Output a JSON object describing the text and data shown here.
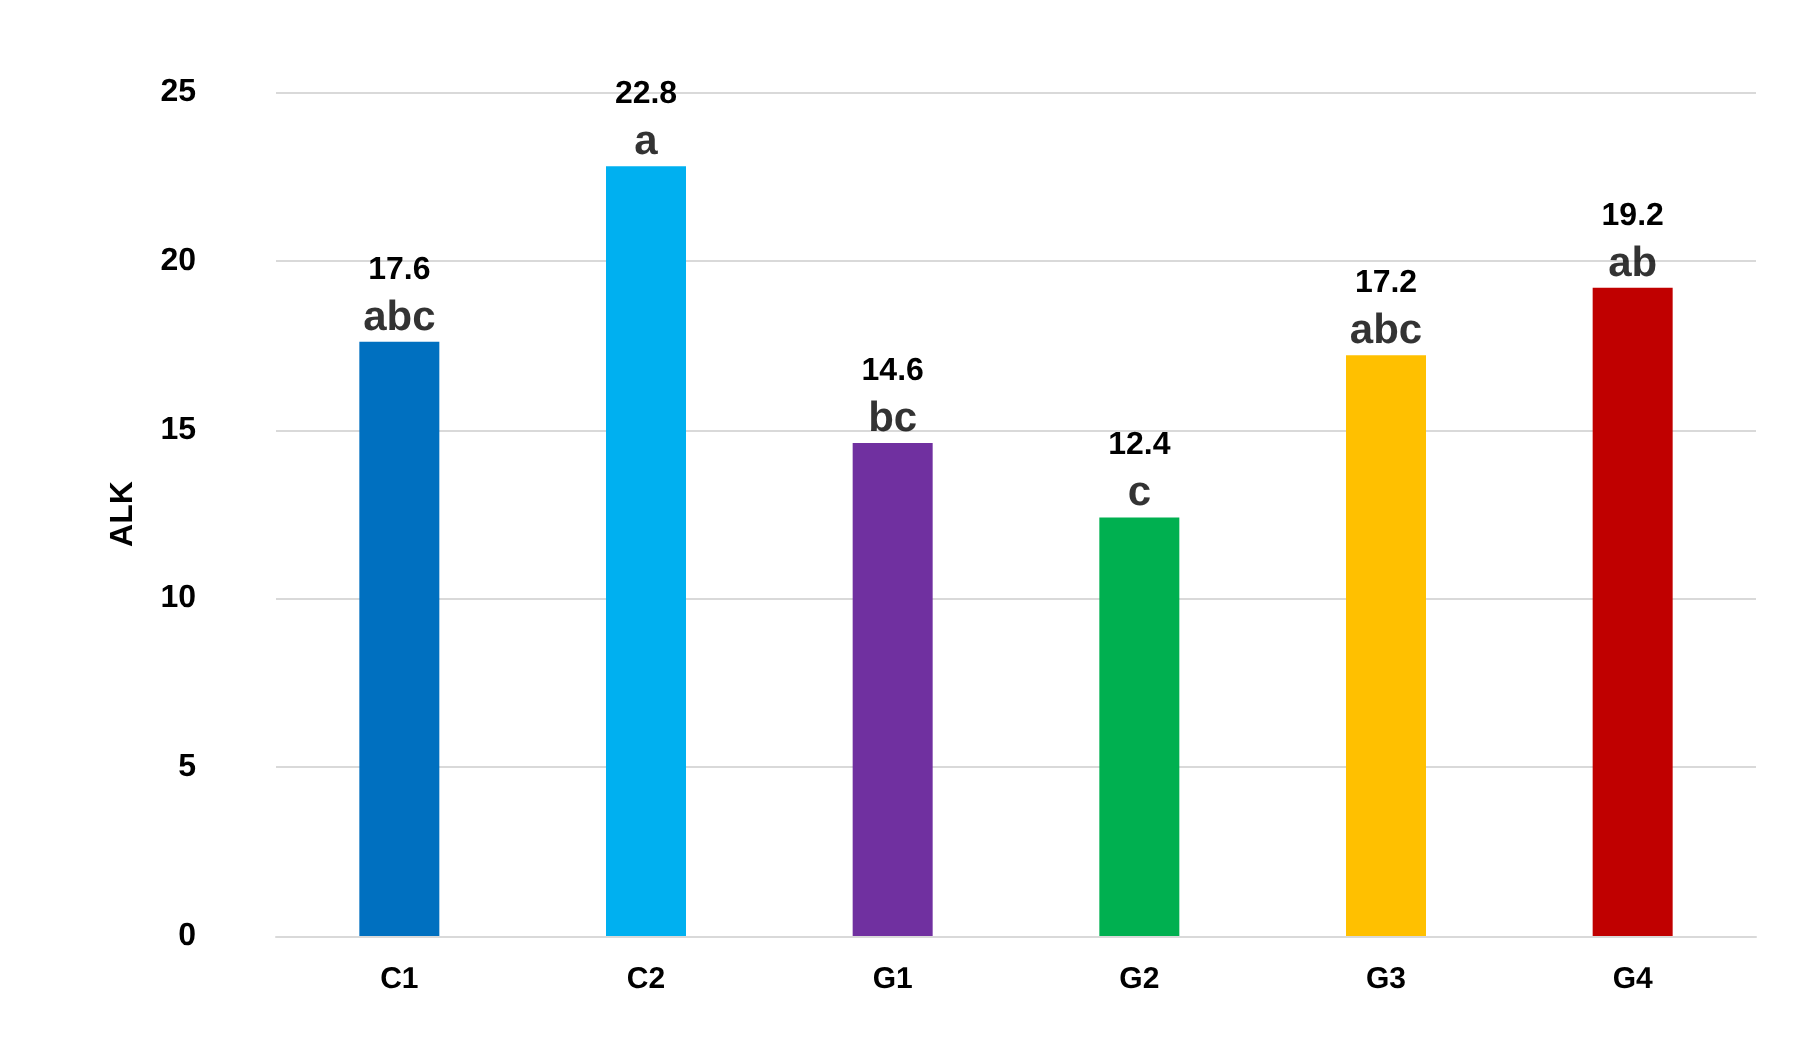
{
  "chart_data": {
    "type": "bar",
    "ylabel": "ALK",
    "categories": [
      "C1",
      "C2",
      "G1",
      "G2",
      "G3",
      "G4"
    ],
    "values": [
      17.6,
      22.8,
      14.6,
      12.4,
      17.2,
      19.2
    ],
    "colors": [
      "#0070c0",
      "#00b0f0",
      "#7030a0",
      "#00b050",
      "#ffc000",
      "#c00000"
    ],
    "ylim": [
      0,
      25
    ],
    "yticks": [
      0,
      5,
      10,
      15,
      20,
      25
    ],
    "grid": "y",
    "data_labels": true,
    "annotations": [
      {
        "text": "abc",
        "x": "C1",
        "y": 17.6
      },
      {
        "text": "a",
        "x": "C2",
        "y": 22.8
      },
      {
        "text": "bc",
        "x": "G1",
        "y": 14.6
      },
      {
        "text": "c",
        "x": "G2",
        "y": 12.4
      },
      {
        "text": "abc",
        "x": "G3",
        "y": 17.2
      },
      {
        "text": "ab",
        "x": "G4",
        "y": 19.2
      }
    ]
  }
}
